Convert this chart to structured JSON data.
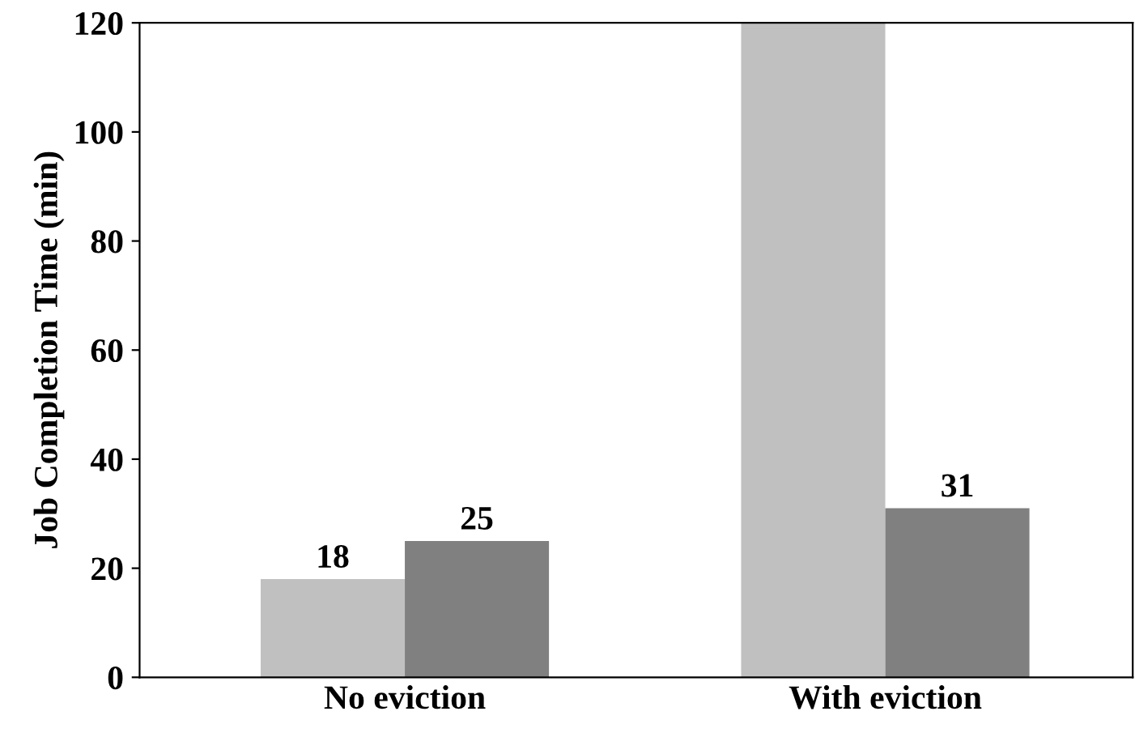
{
  "chart_data": {
    "type": "bar",
    "ylabel": "Job Completion Time (min)",
    "categories": [
      "No eviction",
      "With eviction"
    ],
    "series": [
      {
        "color": "#c0c0c0",
        "values": [
          18,
          120
        ],
        "value_labels": [
          "18",
          null
        ]
      },
      {
        "color": "#808080",
        "values": [
          25,
          31
        ],
        "value_labels": [
          "25",
          "31"
        ]
      }
    ],
    "ylim": [
      0,
      120
    ],
    "yticks": [
      0,
      20,
      40,
      60,
      80,
      100,
      120
    ],
    "grid": false,
    "legend": false
  }
}
